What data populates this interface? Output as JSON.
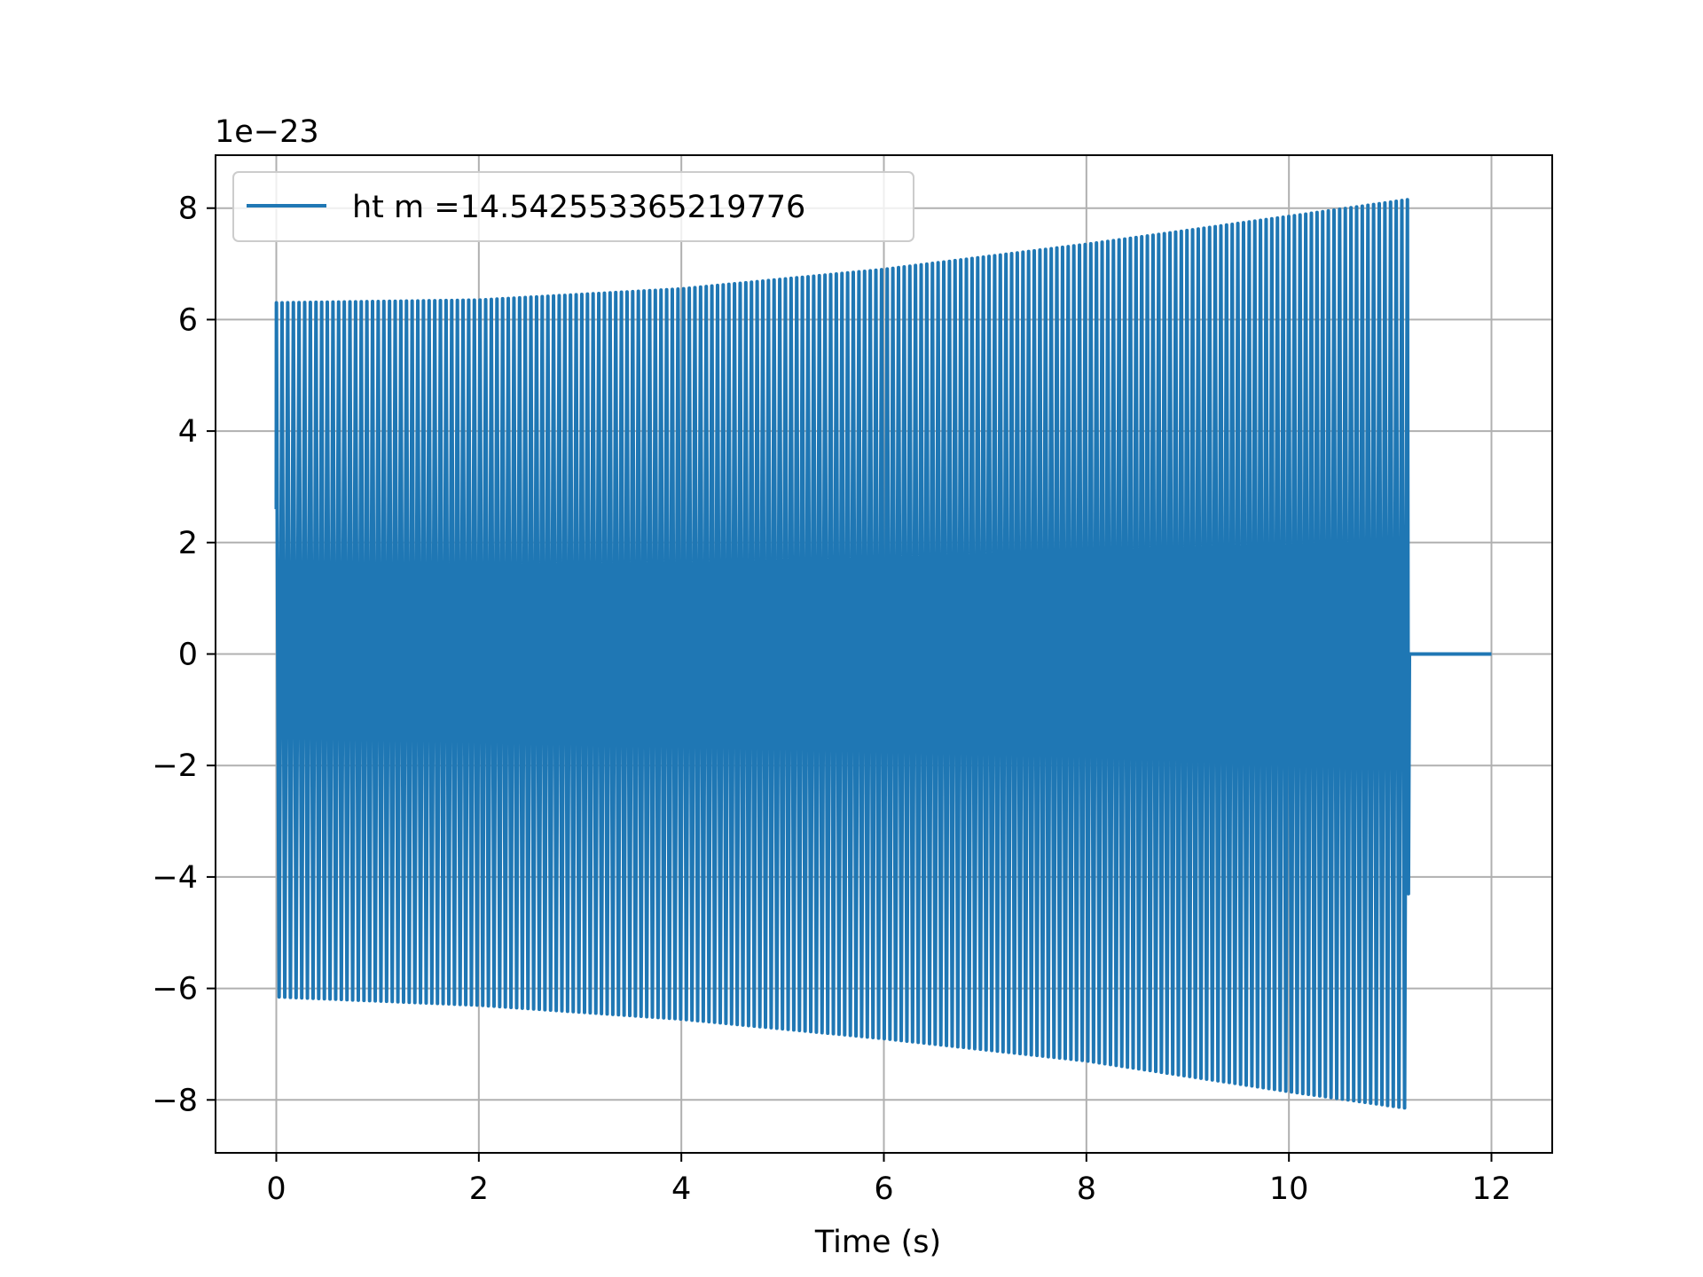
{
  "chart_data": {
    "type": "line",
    "title": "",
    "xlabel": "Time (s)",
    "ylabel": "",
    "offset_text": "1e−23",
    "y_scale_factor": 1e-23,
    "xlim": [
      -0.6,
      12.6
    ],
    "ylim": [
      -8.95,
      8.95
    ],
    "xticks": [
      0,
      2,
      4,
      6,
      8,
      10,
      12
    ],
    "xtick_labels": [
      "0",
      "2",
      "4",
      "6",
      "8",
      "10",
      "12"
    ],
    "yticks": [
      -8,
      -6,
      -4,
      -2,
      0,
      2,
      4,
      6,
      8
    ],
    "ytick_labels": [
      "−8",
      "−6",
      "−4",
      "−2",
      "0",
      "2",
      "4",
      "6",
      "8"
    ],
    "grid": true,
    "legend_position": "upper-left",
    "series": [
      {
        "name": "ht m =14.542553365219776",
        "color": "#1f77b4",
        "signal": {
          "t_start": 0,
          "t_merge": 11.17,
          "t_end": 12,
          "amplitude_start": 6.15,
          "amplitude_end": 8.15,
          "initial_value": 2.6,
          "cycles_approx": 200
        },
        "envelope_samples": [
          {
            "t": 0,
            "upper": 6.3,
            "lower": -6.15
          },
          {
            "t": 2,
            "upper": 6.35,
            "lower": -6.3
          },
          {
            "t": 4,
            "upper": 6.55,
            "lower": -6.55
          },
          {
            "t": 6,
            "upper": 6.9,
            "lower": -6.9
          },
          {
            "t": 8,
            "upper": 7.35,
            "lower": -7.3
          },
          {
            "t": 10,
            "upper": 7.85,
            "lower": -7.85
          },
          {
            "t": 11.17,
            "upper": 8.15,
            "lower": -8.15
          },
          {
            "t": 12,
            "upper": 0,
            "lower": 0
          }
        ]
      }
    ]
  }
}
